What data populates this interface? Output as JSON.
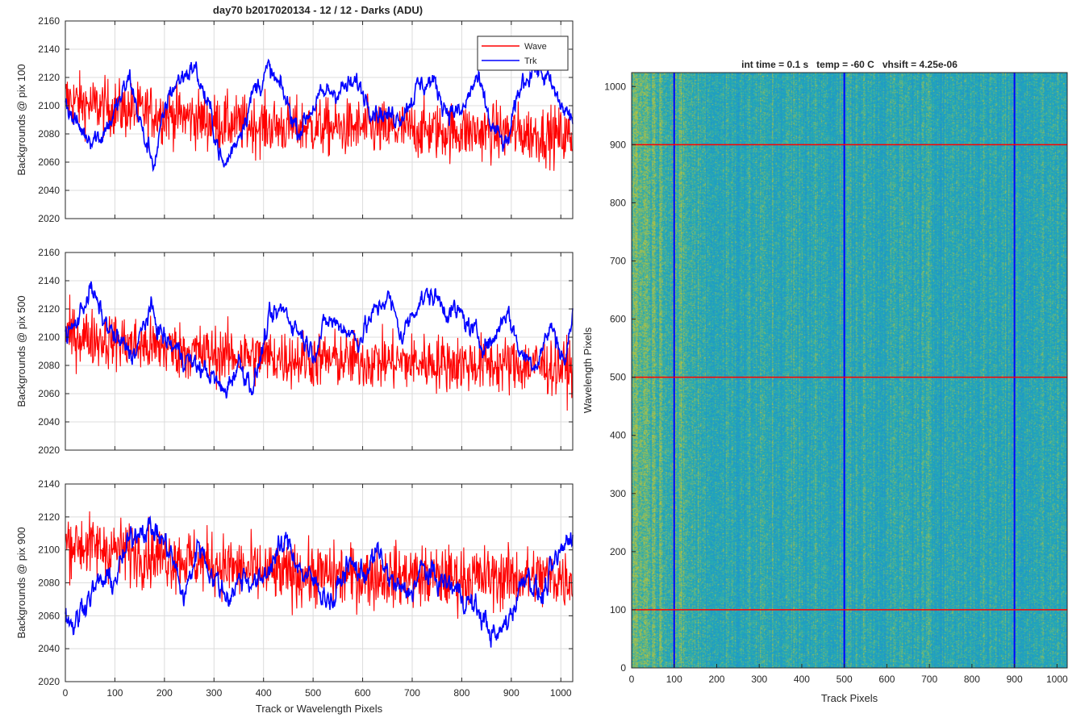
{
  "figure": {
    "title": "day70 b2017020134 - 12 / 12 - Darks (ADU)"
  },
  "colors": {
    "wave": "#ff0000",
    "trk": "#0000ff",
    "grid": "#dcdcdc",
    "axis": "#262626",
    "map_low": "#1f90cf",
    "map_mid": "#22aab6",
    "map_high": "#b8c23c"
  },
  "chart_data": [
    {
      "type": "line",
      "id": "p100",
      "title": "day70 b2017020134 - 12 / 12 - Darks (ADU)",
      "xlabel": "",
      "ylabel": "Backgrounds @ pix 100",
      "xlim": [
        0,
        1024
      ],
      "ylim": [
        2020,
        2160
      ],
      "xticks": [
        0,
        100,
        200,
        300,
        400,
        500,
        600,
        700,
        800,
        900,
        1000
      ],
      "yticks": [
        2020,
        2040,
        2060,
        2080,
        2100,
        2120,
        2140,
        2160
      ],
      "show_xtick_labels": false,
      "grid": true,
      "legend": {
        "placement": "top-right",
        "entries": [
          "Wave",
          "Trk"
        ]
      },
      "series": [
        {
          "name": "Wave",
          "color": "#ff0000",
          "noise": 17,
          "x": [
            0,
            50,
            100,
            150,
            200,
            250,
            300,
            350,
            400,
            450,
            500,
            550,
            600,
            650,
            700,
            750,
            800,
            850,
            900,
            950,
            1024
          ],
          "y": [
            2105,
            2100,
            2098,
            2096,
            2094,
            2092,
            2088,
            2087,
            2086,
            2085,
            2085,
            2084,
            2084,
            2083,
            2083,
            2082,
            2082,
            2081,
            2081,
            2080,
            2078
          ]
        },
        {
          "name": "Trk",
          "color": "#0000ff",
          "noise": 3,
          "x": [
            0,
            15,
            40,
            70,
            100,
            130,
            160,
            180,
            210,
            240,
            260,
            290,
            320,
            350,
            380,
            410,
            440,
            470,
            500,
            530,
            560,
            590,
            620,
            650,
            680,
            710,
            740,
            770,
            800,
            830,
            860,
            890,
            920,
            945,
            970,
            1000,
            1024
          ],
          "y": [
            2105,
            2090,
            2080,
            2078,
            2095,
            2120,
            2075,
            2060,
            2110,
            2122,
            2128,
            2098,
            2055,
            2080,
            2110,
            2125,
            2108,
            2082,
            2100,
            2110,
            2112,
            2115,
            2100,
            2092,
            2095,
            2112,
            2118,
            2098,
            2094,
            2120,
            2085,
            2070,
            2115,
            2128,
            2120,
            2100,
            2090
          ]
        }
      ]
    },
    {
      "type": "line",
      "id": "p500",
      "xlabel": "",
      "ylabel": "Backgrounds @ pix 500",
      "xlim": [
        0,
        1024
      ],
      "ylim": [
        2020,
        2160
      ],
      "xticks": [
        0,
        100,
        200,
        300,
        400,
        500,
        600,
        700,
        800,
        900,
        1000
      ],
      "yticks": [
        2020,
        2040,
        2060,
        2080,
        2100,
        2120,
        2140,
        2160
      ],
      "show_xtick_labels": false,
      "grid": true,
      "series": [
        {
          "name": "Wave",
          "color": "#ff0000",
          "noise": 17,
          "x": [
            0,
            50,
            100,
            150,
            200,
            250,
            300,
            350,
            400,
            450,
            500,
            550,
            600,
            650,
            700,
            750,
            800,
            850,
            900,
            950,
            1024
          ],
          "y": [
            2102,
            2100,
            2097,
            2094,
            2092,
            2090,
            2088,
            2087,
            2086,
            2085,
            2084,
            2084,
            2083,
            2083,
            2082,
            2082,
            2081,
            2081,
            2080,
            2080,
            2078
          ]
        },
        {
          "name": "Trk",
          "color": "#0000ff",
          "noise": 3,
          "x": [
            0,
            20,
            50,
            80,
            110,
            140,
            170,
            200,
            230,
            260,
            290,
            320,
            350,
            380,
            410,
            440,
            470,
            500,
            530,
            560,
            590,
            620,
            650,
            680,
            710,
            740,
            770,
            800,
            830,
            860,
            890,
            920,
            950,
            980,
            1010,
            1024
          ],
          "y": [
            2100,
            2108,
            2135,
            2110,
            2095,
            2088,
            2120,
            2098,
            2090,
            2080,
            2075,
            2060,
            2082,
            2065,
            2110,
            2120,
            2105,
            2090,
            2112,
            2108,
            2098,
            2115,
            2130,
            2100,
            2125,
            2130,
            2120,
            2115,
            2100,
            2095,
            2120,
            2088,
            2082,
            2108,
            2082,
            2118
          ]
        }
      ]
    },
    {
      "type": "line",
      "id": "p900",
      "xlabel": "Track or Wavelength Pixels",
      "ylabel": "Backgrounds @ pix 900",
      "xlim": [
        0,
        1024
      ],
      "ylim": [
        2020,
        2140
      ],
      "xticks": [
        0,
        100,
        200,
        300,
        400,
        500,
        600,
        700,
        800,
        900,
        1000
      ],
      "yticks": [
        2020,
        2040,
        2060,
        2080,
        2100,
        2120,
        2140
      ],
      "show_xtick_labels": true,
      "grid": true,
      "series": [
        {
          "name": "Wave",
          "color": "#ff0000",
          "noise": 16,
          "x": [
            0,
            50,
            100,
            150,
            200,
            250,
            300,
            350,
            400,
            450,
            500,
            550,
            600,
            650,
            700,
            750,
            800,
            850,
            900,
            950,
            1024
          ],
          "y": [
            2105,
            2102,
            2100,
            2098,
            2096,
            2094,
            2092,
            2088,
            2086,
            2085,
            2085,
            2084,
            2084,
            2084,
            2084,
            2083,
            2083,
            2083,
            2083,
            2083,
            2083
          ]
        },
        {
          "name": "Trk",
          "color": "#0000ff",
          "noise": 3,
          "x": [
            0,
            20,
            40,
            70,
            100,
            130,
            150,
            180,
            210,
            240,
            270,
            300,
            330,
            360,
            390,
            420,
            450,
            480,
            510,
            540,
            570,
            600,
            630,
            660,
            690,
            720,
            750,
            780,
            810,
            840,
            870,
            900,
            930,
            960,
            990,
            1024
          ],
          "y": [
            2060,
            2055,
            2070,
            2080,
            2082,
            2105,
            2115,
            2112,
            2100,
            2070,
            2105,
            2082,
            2072,
            2085,
            2078,
            2095,
            2105,
            2085,
            2078,
            2068,
            2092,
            2085,
            2098,
            2080,
            2072,
            2088,
            2082,
            2078,
            2070,
            2060,
            2045,
            2062,
            2088,
            2070,
            2092,
            2112
          ]
        }
      ]
    },
    {
      "type": "heatmap",
      "id": "map",
      "title": "int time = 0.1 s   temp = -60 C   vhsift = 4.25e-06",
      "xlabel": "Track Pixels",
      "ylabel": "Wavelength Pixels",
      "xlim": [
        0,
        1024
      ],
      "ylim": [
        0,
        1024
      ],
      "xticks": [
        0,
        100,
        200,
        300,
        400,
        500,
        600,
        700,
        800,
        900,
        1000
      ],
      "yticks": [
        0,
        100,
        200,
        300,
        400,
        500,
        600,
        700,
        800,
        900,
        1000
      ],
      "values_range": [
        2060,
        2120
      ],
      "trend": "higher on the left edge (x < 150), roughly uniform elsewhere",
      "overlay_vertical_lines": {
        "color": "#0000ff",
        "x": [
          100,
          500,
          900
        ]
      },
      "overlay_horizontal_lines": {
        "color": "#ff0000",
        "y": [
          100,
          500,
          900
        ]
      }
    }
  ]
}
